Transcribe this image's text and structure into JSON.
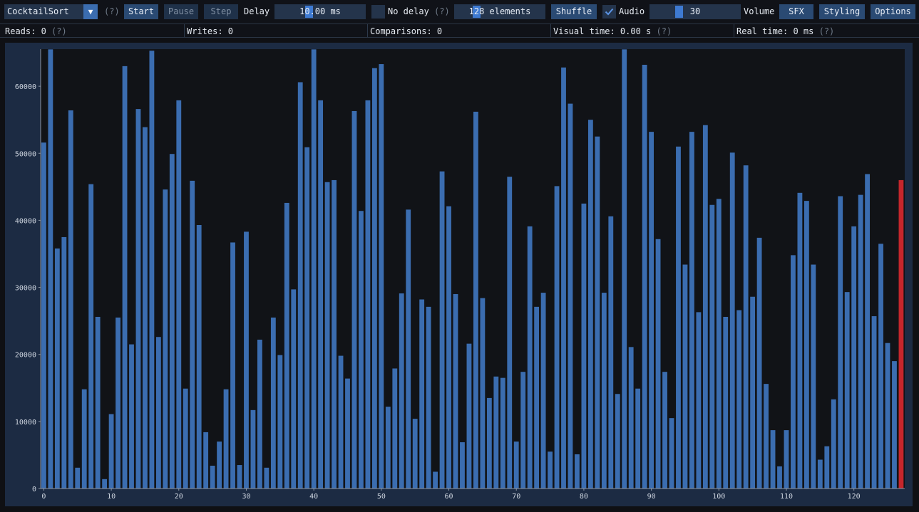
{
  "toolbar": {
    "algorithm_select": "CocktailSort",
    "help_mark": "(?)",
    "start_label": "Start",
    "pause_label": "Pause",
    "step_label": "Step",
    "delay_label": "Delay",
    "delay_value": "10.00 ms",
    "no_delay_label": "No delay",
    "no_delay_help": "(?)",
    "no_delay_checked": false,
    "elements_value": "128 elements",
    "shuffle_label": "Shuffle",
    "audio_checked": true,
    "audio_label": "Audio",
    "volume_value": "30",
    "volume_label": "Volume",
    "sfx_label": "SFX",
    "styling_label": "Styling",
    "options_label": "Options"
  },
  "stats": {
    "reads": "Reads: 0",
    "reads_help": "(?)",
    "writes": "Writes: 0",
    "comparisons": "Comparisons: 0",
    "visual_time": "Visual time: 0.00 s",
    "visual_time_help": "(?)",
    "real_time": "Real time: 0 ms",
    "real_time_help": "(?)"
  },
  "colors": {
    "bar": "#3b6db0",
    "highlight_bar": "#c5262c",
    "background": "#111317",
    "frame": "#1c2b43"
  },
  "chart_data": {
    "type": "bar",
    "title": "",
    "xlabel": "",
    "ylabel": "",
    "x_ticks": [
      0,
      10,
      20,
      30,
      40,
      50,
      60,
      70,
      80,
      90,
      100,
      110,
      120
    ],
    "y_ticks": [
      0,
      10000,
      20000,
      30000,
      40000,
      50000,
      60000
    ],
    "xlim": [
      0,
      128
    ],
    "ylim": [
      0,
      65535
    ],
    "highlight_index": 127,
    "values": [
      51600,
      65500,
      35800,
      37500,
      56400,
      3100,
      14800,
      45400,
      25600,
      1400,
      11100,
      25500,
      63000,
      21500,
      56600,
      53900,
      65300,
      22600,
      44600,
      49900,
      57900,
      14900,
      45900,
      39300,
      8400,
      3400,
      7000,
      14800,
      36700,
      3500,
      38300,
      11700,
      22200,
      3100,
      25500,
      19900,
      42600,
      29700,
      60600,
      50900,
      65500,
      57900,
      45700,
      46000,
      19800,
      16400,
      56300,
      41400,
      57900,
      62700,
      63300,
      12200,
      17900,
      29100,
      41600,
      10400,
      28200,
      27100,
      2500,
      47300,
      42100,
      29000,
      6900,
      21600,
      56200,
      28400,
      13500,
      16700,
      16500,
      46500,
      7000,
      17400,
      39100,
      27100,
      29200,
      5500,
      45100,
      62800,
      57400,
      5100,
      42500,
      55000,
      52500,
      29200,
      40600,
      14100,
      65500,
      21100,
      14900,
      63200,
      53200,
      37200,
      17400,
      10500,
      51000,
      33400,
      53200,
      26300,
      54200,
      42300,
      43200,
      25600,
      50100,
      26600,
      48200,
      28600,
      37400,
      15600,
      8700,
      3300,
      8700,
      34800,
      44100,
      42900,
      33400,
      4300,
      6300,
      13300,
      43600,
      29300,
      39100,
      43800,
      46900,
      25700,
      36500,
      21700,
      19000,
      46000
    ]
  }
}
